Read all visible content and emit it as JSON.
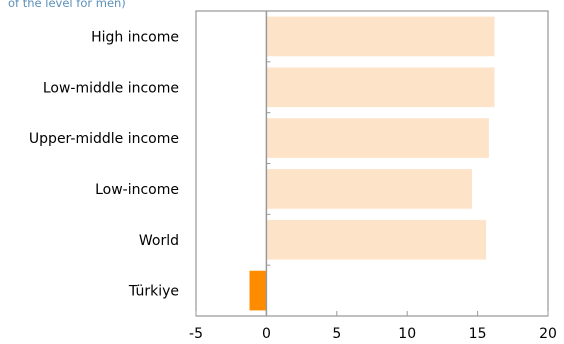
{
  "chart_data": {
    "type": "bar",
    "orientation": "horizontal",
    "subtitle": "of the level for men)",
    "categories": [
      "High income",
      "Low-middle income",
      "Upper-middle income",
      "Low-income",
      "World",
      "Türkiye"
    ],
    "values": [
      16.2,
      16.2,
      15.8,
      14.6,
      15.6,
      -1.2
    ],
    "xlim": [
      -5,
      20
    ],
    "xticks": [
      "-5",
      "0",
      "5",
      "10",
      "15",
      "20"
    ],
    "colors": {
      "default": "#fde3c8",
      "highlight": "#ff8c00",
      "axis": "#999999",
      "frame": "#808080"
    },
    "highlight_category": "Türkiye",
    "grid": false,
    "legend": "none"
  }
}
